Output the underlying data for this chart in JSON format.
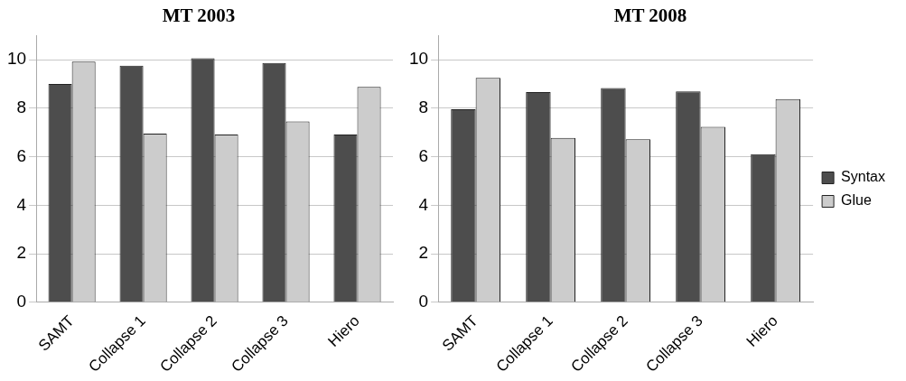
{
  "chart_data": [
    {
      "type": "bar",
      "title": "MT 2003",
      "categories": [
        "SAMT",
        "Collapse 1",
        "Collapse 2",
        "Collapse 3",
        "Hiero"
      ],
      "series": [
        {
          "color": "#4d4d4d",
          "values": [
            9.0,
            9.75,
            10.06,
            9.86,
            6.91
          ]
        },
        {
          "color": "#cccccc",
          "values": [
            9.92,
            6.95,
            6.91,
            7.45,
            8.88
          ]
        }
      ],
      "ylim": [
        0,
        11
      ],
      "yticks": [
        0,
        2,
        4,
        6,
        8,
        10
      ],
      "grid": "y",
      "legend": false
    },
    {
      "type": "bar",
      "title": "MT 2008",
      "categories": [
        "SAMT",
        "Collapse 1",
        "Collapse 2",
        "Collapse 3",
        "Hiero"
      ],
      "series": [
        {
          "name": "Syntax",
          "color": "#4d4d4d",
          "values": [
            7.96,
            8.66,
            8.83,
            8.69,
            6.1
          ]
        },
        {
          "name": "Glue",
          "color": "#cccccc",
          "values": [
            9.25,
            6.77,
            6.72,
            7.23,
            8.37
          ]
        }
      ],
      "ylim": [
        0,
        11
      ],
      "yticks": [
        0,
        2,
        4,
        6,
        8,
        10
      ],
      "grid": "y",
      "legend": "right"
    }
  ]
}
